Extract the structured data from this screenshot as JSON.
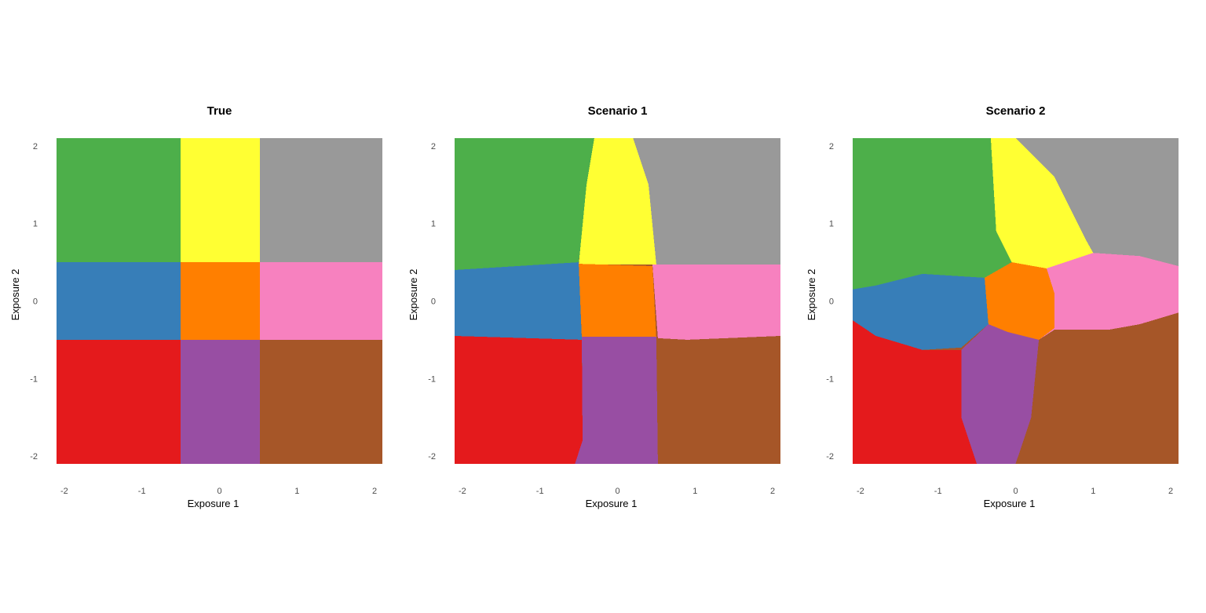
{
  "chart_data": [
    {
      "type": "heatmap",
      "title": "True",
      "xlabel": "Exposure 1",
      "ylabel": "Exposure 2",
      "xlim": [
        -2.1,
        2.1
      ],
      "ylim": [
        -2.1,
        2.1
      ],
      "x_ticks": [
        "-2",
        "-1",
        "0",
        "1",
        "2"
      ],
      "y_ticks": [
        "-2",
        "-1",
        "0",
        "1",
        "2"
      ],
      "grid": false,
      "regions": [
        {
          "color": "#4daf4a",
          "polygon": [
            [
              -2.1,
              0.5
            ],
            [
              -0.5,
              0.5
            ],
            [
              -0.5,
              2.1
            ],
            [
              -2.1,
              2.1
            ]
          ]
        },
        {
          "color": "#ffff33",
          "polygon": [
            [
              -0.5,
              0.5
            ],
            [
              0.52,
              0.5
            ],
            [
              0.52,
              2.1
            ],
            [
              -0.5,
              2.1
            ]
          ]
        },
        {
          "color": "#999999",
          "polygon": [
            [
              0.52,
              0.5
            ],
            [
              2.1,
              0.5
            ],
            [
              2.1,
              2.1
            ],
            [
              0.52,
              2.1
            ]
          ]
        },
        {
          "color": "#377eb8",
          "polygon": [
            [
              -2.1,
              -0.5
            ],
            [
              -0.5,
              -0.5
            ],
            [
              -0.5,
              0.5
            ],
            [
              -2.1,
              0.5
            ]
          ]
        },
        {
          "color": "#ff7f00",
          "polygon": [
            [
              -0.5,
              -0.5
            ],
            [
              0.52,
              -0.5
            ],
            [
              0.52,
              0.5
            ],
            [
              -0.5,
              0.5
            ]
          ]
        },
        {
          "color": "#f781bf",
          "polygon": [
            [
              0.52,
              -0.5
            ],
            [
              2.1,
              -0.5
            ],
            [
              2.1,
              0.5
            ],
            [
              0.52,
              0.5
            ]
          ]
        },
        {
          "color": "#e41a1c",
          "polygon": [
            [
              -2.1,
              -2.1
            ],
            [
              -0.5,
              -2.1
            ],
            [
              -0.5,
              -0.5
            ],
            [
              -2.1,
              -0.5
            ]
          ]
        },
        {
          "color": "#984ea3",
          "polygon": [
            [
              -0.5,
              -2.1
            ],
            [
              0.52,
              -2.1
            ],
            [
              0.52,
              -0.5
            ],
            [
              -0.5,
              -0.5
            ]
          ]
        },
        {
          "color": "#a65628",
          "polygon": [
            [
              0.52,
              -2.1
            ],
            [
              2.1,
              -2.1
            ],
            [
              2.1,
              -0.5
            ],
            [
              0.52,
              -0.5
            ]
          ]
        }
      ]
    },
    {
      "type": "heatmap",
      "title": "Scenario 1",
      "xlabel": "Exposure 1",
      "ylabel": "Exposure 2",
      "xlim": [
        -2.1,
        2.1
      ],
      "ylim": [
        -2.1,
        2.1
      ],
      "x_ticks": [
        "-2",
        "-1",
        "0",
        "1",
        "2"
      ],
      "y_ticks": [
        "-2",
        "-1",
        "0",
        "1",
        "2"
      ],
      "grid": false,
      "background": "#a65628",
      "regions": [
        {
          "color": "#999999",
          "polygon": [
            [
              0.2,
              2.1
            ],
            [
              2.1,
              2.1
            ],
            [
              2.1,
              0.47
            ],
            [
              0.5,
              0.47
            ]
          ]
        },
        {
          "color": "#4daf4a",
          "polygon": [
            [
              -2.1,
              2.1
            ],
            [
              -0.3,
              2.1
            ],
            [
              -0.5,
              0.5
            ],
            [
              -2.1,
              0.4
            ]
          ]
        },
        {
          "color": "#ffff33",
          "polygon": [
            [
              -0.3,
              2.1
            ],
            [
              0.2,
              2.1
            ],
            [
              0.4,
              1.5
            ],
            [
              0.5,
              0.47
            ],
            [
              -0.5,
              0.47
            ],
            [
              -0.4,
              1.5
            ]
          ]
        },
        {
          "color": "#377eb8",
          "polygon": [
            [
              -2.1,
              0.4
            ],
            [
              -0.5,
              0.5
            ],
            [
              -0.46,
              -0.5
            ],
            [
              -2.1,
              -0.45
            ]
          ]
        },
        {
          "color": "#ff7f00",
          "polygon": [
            [
              -0.5,
              0.48
            ],
            [
              0.45,
              0.45
            ],
            [
              0.5,
              -0.48
            ],
            [
              -0.46,
              -0.48
            ]
          ]
        },
        {
          "color": "#f781bf",
          "polygon": [
            [
              0.45,
              0.47
            ],
            [
              2.1,
              0.47
            ],
            [
              2.1,
              -0.45
            ],
            [
              0.9,
              -0.5
            ],
            [
              0.52,
              -0.48
            ]
          ]
        },
        {
          "color": "#e41a1c",
          "polygon": [
            [
              -2.1,
              -0.45
            ],
            [
              -0.46,
              -0.5
            ],
            [
              -0.45,
              -1.8
            ],
            [
              -0.55,
              -2.1
            ],
            [
              -2.1,
              -2.1
            ]
          ]
        },
        {
          "color": "#984ea3",
          "polygon": [
            [
              -0.46,
              -0.46
            ],
            [
              0.5,
              -0.46
            ],
            [
              0.52,
              -2.1
            ],
            [
              -0.55,
              -2.1
            ],
            [
              -0.45,
              -1.8
            ]
          ]
        }
      ]
    },
    {
      "type": "heatmap",
      "title": "Scenario 2",
      "xlabel": "Exposure 1",
      "ylabel": "Exposure 2",
      "xlim": [
        -2.1,
        2.1
      ],
      "ylim": [
        -2.1,
        2.1
      ],
      "x_ticks": [
        "-2",
        "-1",
        "0",
        "1",
        "2"
      ],
      "y_ticks": [
        "-2",
        "-1",
        "0",
        "1",
        "2"
      ],
      "grid": false,
      "background": "#a65628",
      "regions": [
        {
          "color": "#999999",
          "polygon": [
            [
              0,
              2.1
            ],
            [
              2.1,
              2.1
            ],
            [
              2.1,
              0.45
            ],
            [
              1,
              0.62
            ],
            [
              0.9,
              0.8
            ]
          ]
        },
        {
          "color": "#4daf4a",
          "polygon": [
            [
              -2.1,
              2.1
            ],
            [
              -0.32,
              2.1
            ],
            [
              -0.25,
              0.9
            ],
            [
              -0.05,
              0.5
            ],
            [
              -0.4,
              0.3
            ],
            [
              -1.2,
              0.35
            ],
            [
              -1.8,
              0.2
            ],
            [
              -2.1,
              0.15
            ]
          ]
        },
        {
          "color": "#ffff33",
          "polygon": [
            [
              -0.32,
              2.1
            ],
            [
              0,
              2.1
            ],
            [
              0.5,
              1.6
            ],
            [
              0.9,
              0.8
            ],
            [
              1,
              0.62
            ],
            [
              0.4,
              0.42
            ],
            [
              -0.05,
              0.5
            ],
            [
              -0.25,
              0.9
            ]
          ]
        },
        {
          "color": "#377eb8",
          "polygon": [
            [
              -2.1,
              0.15
            ],
            [
              -1.8,
              0.2
            ],
            [
              -1.2,
              0.35
            ],
            [
              -0.4,
              0.3
            ],
            [
              -0.35,
              -0.3
            ],
            [
              -0.7,
              -0.6
            ],
            [
              -1.2,
              -0.63
            ],
            [
              -1.8,
              -0.45
            ],
            [
              -2.1,
              -0.25
            ]
          ]
        },
        {
          "color": "#ff7f00",
          "polygon": [
            [
              -0.4,
              0.3
            ],
            [
              -0.05,
              0.5
            ],
            [
              0.4,
              0.42
            ],
            [
              0.5,
              0.1
            ],
            [
              0.5,
              -0.35
            ],
            [
              0.3,
              -0.5
            ],
            [
              -0.1,
              -0.4
            ],
            [
              -0.35,
              -0.3
            ]
          ]
        },
        {
          "color": "#f781bf",
          "polygon": [
            [
              0.4,
              0.42
            ],
            [
              1,
              0.62
            ],
            [
              1.6,
              0.58
            ],
            [
              2.1,
              0.45
            ],
            [
              2.1,
              -0.15
            ],
            [
              1.6,
              -0.3
            ],
            [
              1.2,
              -0.37
            ],
            [
              0.5,
              -0.37
            ],
            [
              0.3,
              -0.5
            ],
            [
              0.5,
              -0.35
            ],
            [
              0.5,
              0.1
            ]
          ]
        },
        {
          "color": "#e41a1c",
          "polygon": [
            [
              -2.1,
              -0.25
            ],
            [
              -1.8,
              -0.45
            ],
            [
              -1.2,
              -0.63
            ],
            [
              -0.7,
              -0.63
            ],
            [
              -0.7,
              -1.5
            ],
            [
              -0.5,
              -2.1
            ],
            [
              -2.1,
              -2.1
            ]
          ]
        },
        {
          "color": "#984ea3",
          "polygon": [
            [
              -0.7,
              -0.63
            ],
            [
              -0.35,
              -0.3
            ],
            [
              -0.1,
              -0.4
            ],
            [
              0.3,
              -0.5
            ],
            [
              0.2,
              -1.5
            ],
            [
              0,
              -2.1
            ],
            [
              -0.5,
              -2.1
            ],
            [
              -0.7,
              -1.5
            ]
          ]
        }
      ]
    }
  ]
}
